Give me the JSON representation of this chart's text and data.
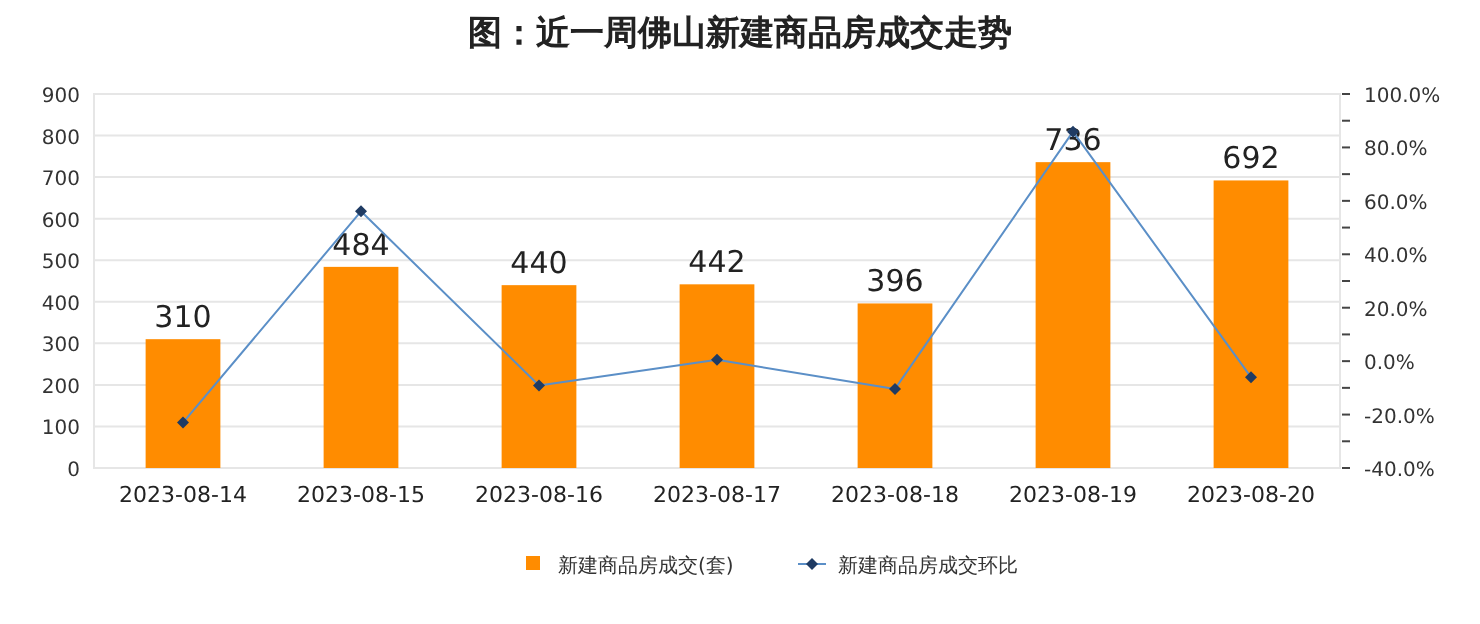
{
  "chart_data": {
    "type": "bar",
    "title": "图：近一周佛山新建商品房成交走势",
    "categories": [
      "2023-08-14",
      "2023-08-15",
      "2023-08-16",
      "2023-08-17",
      "2023-08-18",
      "2023-08-19",
      "2023-08-20"
    ],
    "series": [
      {
        "name": "新建商品房成交(套)",
        "color": "#ff8c00",
        "values": [
          310,
          484,
          440,
          442,
          396,
          736,
          692
        ],
        "value_labels": [
          "310",
          "484",
          "440",
          "442",
          "396",
          "736",
          "692"
        ]
      },
      {
        "name": "新建商品房成交环比",
        "type": "line",
        "axis": "y2",
        "color": "#5b8fc7",
        "values": [
          -23,
          56.1,
          -9.1,
          0.5,
          -10.4,
          85.9,
          -6
        ]
      }
    ],
    "ylim": [
      0,
      900
    ],
    "yticks": [
      0,
      100,
      200,
      300,
      400,
      500,
      600,
      700,
      800,
      900
    ],
    "y2lim": [
      -40,
      100
    ],
    "y2ticks": [
      {
        "value": -40,
        "label": "-40.0%"
      },
      {
        "value": -30,
        "label": null
      },
      {
        "value": -20,
        "label": "-20.0%"
      },
      {
        "value": -10,
        "label": null
      },
      {
        "value": 0,
        "label": "0.0%"
      },
      {
        "value": 10,
        "label": null
      },
      {
        "value": 20,
        "label": "20.0%"
      },
      {
        "value": 30,
        "label": null
      },
      {
        "value": 40,
        "label": "40.0%"
      },
      {
        "value": 50,
        "label": null
      },
      {
        "value": 60,
        "label": "60.0%"
      },
      {
        "value": 70,
        "label": null
      },
      {
        "value": 80,
        "label": "80.0%"
      },
      {
        "value": 90,
        "label": null
      },
      {
        "value": 100,
        "label": "100.0%"
      }
    ],
    "grid": "y",
    "legend": "bottom",
    "marker": "diamond",
    "line_style": "solid"
  }
}
